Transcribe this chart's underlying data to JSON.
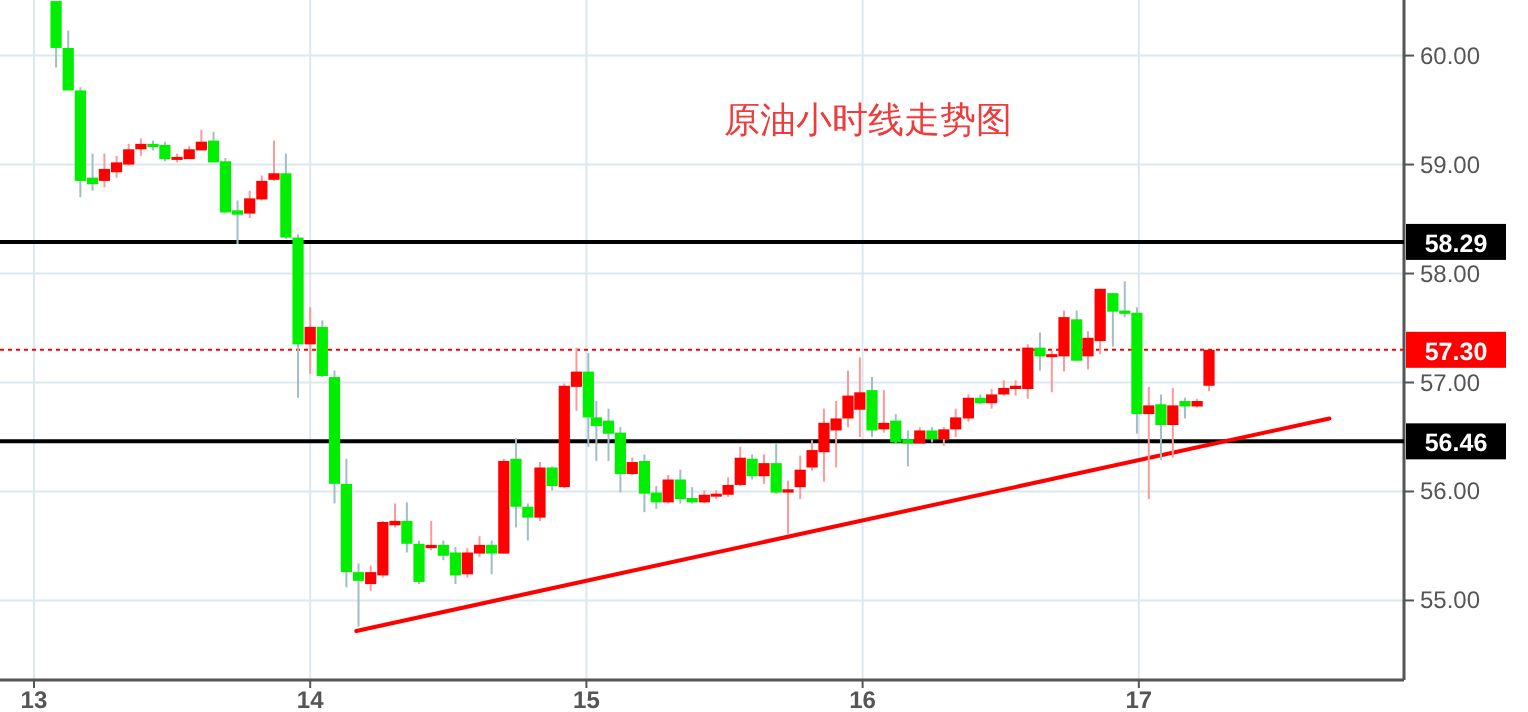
{
  "chart_data": {
    "type": "candlestick",
    "title": "原油小时线走势图",
    "grid": true,
    "xlim": [
      12.877,
      17.96
    ],
    "xticks": [
      13,
      14,
      15,
      16,
      17
    ],
    "ylim": [
      54.27,
      60.51
    ],
    "yticks": [
      {
        "value": 55,
        "label": "55.00"
      },
      {
        "value": 56,
        "label": "56.00"
      },
      {
        "value": 57,
        "label": "57.00"
      },
      {
        "value": 58,
        "label": "58.00"
      },
      {
        "value": 59,
        "label": "59.00"
      },
      {
        "value": 60,
        "label": "60.00"
      }
    ],
    "x": [
      13.08,
      13.124,
      13.168,
      13.212,
      13.255,
      13.299,
      13.343,
      13.387,
      13.431,
      13.474,
      13.518,
      13.562,
      13.606,
      13.65,
      13.693,
      13.737,
      13.781,
      13.825,
      13.869,
      13.912,
      13.956,
      14.0,
      14.044,
      14.088,
      14.131,
      14.175,
      14.219,
      14.263,
      14.307,
      14.35,
      14.394,
      14.438,
      14.482,
      14.526,
      14.569,
      14.613,
      14.657,
      14.701,
      14.745,
      14.788,
      14.832,
      14.876,
      14.92,
      14.964,
      15.007,
      15.036,
      15.08,
      15.123,
      15.166,
      15.21,
      15.253,
      15.296,
      15.34,
      15.383,
      15.427,
      15.47,
      15.513,
      15.557,
      15.6,
      15.643,
      15.687,
      15.73,
      15.774,
      15.817,
      15.86,
      15.904,
      15.947,
      15.99,
      16.034,
      16.077,
      16.12,
      16.164,
      16.207,
      16.251,
      16.294,
      16.337,
      16.383,
      16.426,
      16.467,
      16.511,
      16.554,
      16.598,
      16.642,
      16.685,
      16.729,
      16.775,
      16.816,
      16.86,
      16.906,
      16.949,
      16.993,
      17.036,
      17.08,
      17.123,
      17.167,
      17.211,
      17.254
    ],
    "ohlc": [
      [
        60.5,
        60.5,
        59.89,
        60.07
      ],
      [
        60.07,
        60.23,
        59.68,
        59.68
      ],
      [
        59.68,
        59.71,
        58.7,
        58.85
      ],
      [
        58.88,
        59.1,
        58.76,
        58.82
      ],
      [
        58.85,
        59.1,
        58.79,
        58.96
      ],
      [
        58.93,
        59.08,
        58.88,
        59.02
      ],
      [
        59.0,
        59.19,
        58.99,
        59.14
      ],
      [
        59.14,
        59.24,
        59.08,
        59.19
      ],
      [
        59.19,
        59.22,
        59.13,
        59.16
      ],
      [
        59.18,
        59.21,
        59.03,
        59.05
      ],
      [
        59.05,
        59.1,
        59.02,
        59.07
      ],
      [
        59.05,
        59.17,
        59.05,
        59.14
      ],
      [
        59.13,
        59.32,
        59.13,
        59.21
      ],
      [
        59.22,
        59.3,
        59.02,
        59.02
      ],
      [
        59.03,
        59.06,
        58.56,
        58.56
      ],
      [
        58.58,
        58.67,
        58.27,
        58.54
      ],
      [
        58.55,
        58.76,
        58.51,
        58.69
      ],
      [
        58.68,
        58.9,
        58.67,
        58.85
      ],
      [
        58.86,
        59.22,
        58.85,
        58.92
      ],
      [
        58.92,
        59.1,
        58.32,
        58.33
      ],
      [
        58.33,
        58.36,
        56.86,
        57.35
      ],
      [
        57.35,
        57.69,
        57.08,
        57.51
      ],
      [
        57.51,
        57.57,
        57.05,
        57.06
      ],
      [
        57.05,
        57.11,
        55.89,
        56.07
      ],
      [
        56.07,
        56.3,
        55.12,
        55.26
      ],
      [
        55.26,
        55.34,
        54.76,
        55.18
      ],
      [
        55.15,
        55.32,
        55.09,
        55.26
      ],
      [
        55.23,
        55.73,
        55.21,
        55.72
      ],
      [
        55.69,
        55.89,
        55.67,
        55.73
      ],
      [
        55.73,
        55.9,
        55.44,
        55.52
      ],
      [
        55.52,
        55.55,
        55.15,
        55.17
      ],
      [
        55.48,
        55.73,
        55.46,
        55.51
      ],
      [
        55.51,
        55.55,
        55.37,
        55.41
      ],
      [
        55.44,
        55.49,
        55.15,
        55.23
      ],
      [
        55.24,
        55.48,
        55.21,
        55.44
      ],
      [
        55.43,
        55.59,
        55.4,
        55.51
      ],
      [
        55.51,
        55.55,
        55.24,
        55.43
      ],
      [
        55.43,
        56.3,
        55.43,
        56.28
      ],
      [
        56.3,
        56.49,
        55.67,
        55.86
      ],
      [
        55.86,
        55.89,
        55.55,
        55.76
      ],
      [
        55.76,
        56.27,
        55.73,
        56.22
      ],
      [
        56.22,
        56.23,
        56.01,
        56.05
      ],
      [
        56.04,
        56.99,
        56.03,
        56.97
      ],
      [
        56.96,
        57.32,
        56.74,
        57.1
      ],
      [
        57.1,
        57.27,
        56.41,
        56.68
      ],
      [
        56.68,
        56.83,
        56.28,
        56.6
      ],
      [
        56.65,
        56.76,
        56.28,
        56.53
      ],
      [
        56.54,
        56.59,
        55.99,
        56.16
      ],
      [
        56.16,
        56.31,
        56.15,
        56.27
      ],
      [
        56.28,
        56.34,
        55.81,
        55.98
      ],
      [
        55.99,
        56.05,
        55.84,
        55.9
      ],
      [
        55.9,
        56.15,
        55.89,
        56.11
      ],
      [
        56.11,
        56.2,
        55.89,
        55.93
      ],
      [
        55.94,
        56.04,
        55.89,
        55.9
      ],
      [
        55.9,
        56.01,
        55.89,
        55.97
      ],
      [
        55.97,
        56.01,
        55.93,
        55.98
      ],
      [
        55.97,
        56.13,
        55.95,
        56.06
      ],
      [
        56.06,
        56.41,
        56.05,
        56.31
      ],
      [
        56.3,
        56.34,
        56.11,
        56.14
      ],
      [
        56.14,
        56.34,
        56.07,
        56.26
      ],
      [
        56.26,
        56.44,
        55.98,
        55.99
      ],
      [
        55.99,
        56.1,
        55.61,
        56.02
      ],
      [
        56.04,
        56.33,
        55.93,
        56.2
      ],
      [
        56.22,
        56.47,
        56.19,
        56.38
      ],
      [
        56.36,
        56.76,
        56.09,
        56.63
      ],
      [
        56.56,
        56.83,
        56.22,
        56.67
      ],
      [
        56.67,
        57.11,
        56.59,
        56.88
      ],
      [
        56.75,
        57.23,
        56.5,
        56.91
      ],
      [
        56.93,
        57.05,
        56.5,
        56.56
      ],
      [
        56.57,
        56.93,
        56.54,
        56.63
      ],
      [
        56.65,
        56.71,
        56.44,
        56.45
      ],
      [
        56.48,
        56.56,
        56.23,
        56.44
      ],
      [
        56.44,
        56.59,
        56.44,
        56.56
      ],
      [
        56.56,
        56.59,
        56.45,
        56.48
      ],
      [
        56.48,
        56.59,
        56.42,
        56.57
      ],
      [
        56.57,
        56.76,
        56.5,
        56.68
      ],
      [
        56.67,
        56.89,
        56.64,
        56.86
      ],
      [
        56.86,
        56.89,
        56.8,
        56.81
      ],
      [
        56.81,
        56.94,
        56.76,
        56.89
      ],
      [
        56.89,
        57.02,
        56.88,
        56.95
      ],
      [
        56.94,
        57.02,
        56.88,
        56.97
      ],
      [
        56.94,
        57.35,
        56.85,
        57.32
      ],
      [
        57.32,
        57.46,
        57.11,
        57.24
      ],
      [
        57.24,
        57.29,
        56.91,
        57.26
      ],
      [
        57.24,
        57.66,
        57.1,
        57.6
      ],
      [
        57.58,
        57.66,
        57.2,
        57.2
      ],
      [
        57.24,
        57.47,
        57.12,
        57.41
      ],
      [
        57.38,
        57.86,
        57.26,
        57.86
      ],
      [
        57.82,
        57.82,
        57.33,
        57.65
      ],
      [
        57.66,
        57.93,
        57.6,
        57.63
      ],
      [
        57.64,
        57.69,
        56.53,
        56.71
      ],
      [
        56.71,
        56.96,
        55.93,
        56.79
      ],
      [
        56.8,
        56.89,
        56.29,
        56.61
      ],
      [
        56.61,
        56.95,
        56.31,
        56.79
      ],
      [
        56.83,
        56.86,
        56.67,
        56.78
      ],
      [
        56.78,
        56.85,
        56.77,
        56.83
      ],
      [
        56.97,
        57.3,
        56.92,
        57.3
      ]
    ],
    "colors": [
      "#00ee00",
      "#00ee00",
      "#00ee00",
      "#00ee00",
      "#ff0000",
      "#ff0000",
      "#ff0000",
      "#ff0000",
      "#00ee00",
      "#00ee00",
      "#ff0000",
      "#ff0000",
      "#ff0000",
      "#00ee00",
      "#00ee00",
      "#00ee00",
      "#ff0000",
      "#ff0000",
      "#ff0000",
      "#00ee00",
      "#00ee00",
      "#ff0000",
      "#00ee00",
      "#00ee00",
      "#00ee00",
      "#00ee00",
      "#ff0000",
      "#ff0000",
      "#ff0000",
      "#00ee00",
      "#00ee00",
      "#ff0000",
      "#00ee00",
      "#00ee00",
      "#ff0000",
      "#ff0000",
      "#00ee00",
      "#ff0000",
      "#00ee00",
      "#00ee00",
      "#ff0000",
      "#00ee00",
      "#ff0000",
      "#ff0000",
      "#00ee00",
      "#00ee00",
      "#00ee00",
      "#00ee00",
      "#ff0000",
      "#00ee00",
      "#00ee00",
      "#ff0000",
      "#00ee00",
      "#00ee00",
      "#ff0000",
      "#ff0000",
      "#ff0000",
      "#ff0000",
      "#00ee00",
      "#ff0000",
      "#00ee00",
      "#ff0000",
      "#ff0000",
      "#ff0000",
      "#ff0000",
      "#ff0000",
      "#ff0000",
      "#ff0000",
      "#00ee00",
      "#ff0000",
      "#00ee00",
      "#00ee00",
      "#ff0000",
      "#00ee00",
      "#ff0000",
      "#ff0000",
      "#ff0000",
      "#00ee00",
      "#ff0000",
      "#ff0000",
      "#ff0000",
      "#ff0000",
      "#00ee00",
      "#ff0000",
      "#ff0000",
      "#00ee00",
      "#ff0000",
      "#ff0000",
      "#00ee00",
      "#00ee00",
      "#00ee00",
      "#ff0000",
      "#00ee00",
      "#ff0000",
      "#00ee00",
      "#ff0000",
      "#ff0000"
    ],
    "series": [
      {
        "type": "line",
        "color": "#ff0000",
        "x": [
          14.167,
          17.69
        ],
        "values": [
          54.72,
          56.67
        ]
      }
    ],
    "ref_lines": [
      {
        "axis": "y",
        "value": 58.29,
        "label": "58.29",
        "color": "#000000",
        "line_style": "solid"
      },
      {
        "axis": "y",
        "value": 57.3,
        "label": "57.30",
        "color": "#ff0000",
        "line_style": "dotted"
      },
      {
        "axis": "y",
        "value": 56.46,
        "label": "56.46",
        "color": "#000000",
        "line_style": "solid"
      }
    ]
  }
}
